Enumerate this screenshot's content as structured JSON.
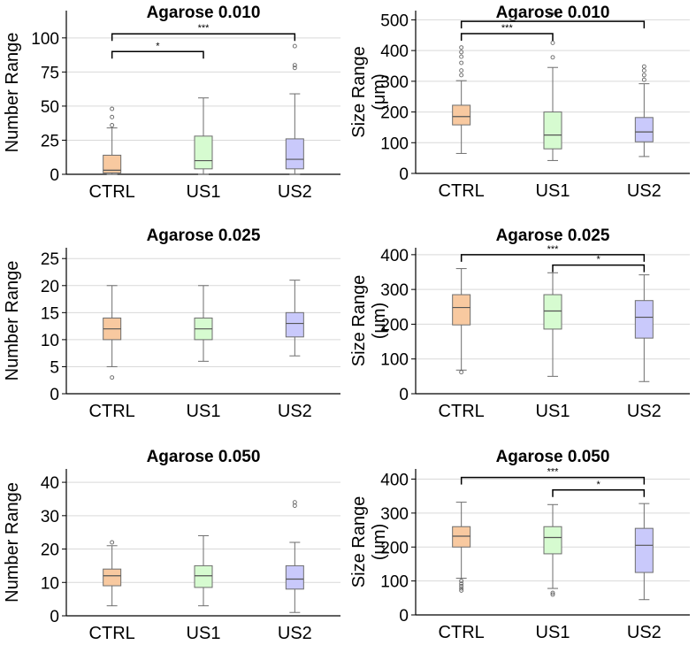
{
  "figure": {
    "colors": {
      "CTRL": "#f8c9a0",
      "US1": "#d6fbd0",
      "US2": "#c9c9fb",
      "edge": "#6e6e6e",
      "grid": "#d9d9d9",
      "bracket": "#000000"
    }
  },
  "chart_data": [
    {
      "type": "box",
      "title": "Agarose 0.010",
      "ylabel": "Number Range",
      "ylim": [
        0,
        120
      ],
      "yticks": [
        0,
        25,
        50,
        75,
        100
      ],
      "categories": [
        "CTRL",
        "US1",
        "US2"
      ],
      "boxes": [
        {
          "name": "CTRL",
          "whislo": 0,
          "q1": 1,
          "med": 3,
          "q3": 14,
          "whishi": 34,
          "fliers": [
            36,
            42,
            48
          ]
        },
        {
          "name": "US1",
          "whislo": 0,
          "q1": 4,
          "med": 10,
          "q3": 28,
          "whishi": 56,
          "fliers": []
        },
        {
          "name": "US2",
          "whislo": 0,
          "q1": 4,
          "med": 11,
          "q3": 26,
          "whishi": 59,
          "fliers": [
            78,
            80,
            94
          ]
        }
      ],
      "significance": [
        {
          "from": "CTRL",
          "to": "US1",
          "label": "*",
          "y": 90
        },
        {
          "from": "CTRL",
          "to": "US2",
          "label": "***",
          "y": 103
        }
      ]
    },
    {
      "type": "box",
      "title": "Agarose 0.010",
      "ylabel": "Size Range",
      "ylabel_unit": "(μm)",
      "ylim": [
        0,
        530
      ],
      "yticks": [
        0,
        100,
        200,
        300,
        400,
        500
      ],
      "categories": [
        "CTRL",
        "US1",
        "US2"
      ],
      "boxes": [
        {
          "name": "CTRL",
          "whislo": 65,
          "q1": 158,
          "med": 185,
          "q3": 222,
          "whishi": 302,
          "fliers": [
            320,
            335,
            360,
            380,
            395,
            410
          ]
        },
        {
          "name": "US1",
          "whislo": 42,
          "q1": 80,
          "med": 125,
          "q3": 200,
          "whishi": 345,
          "fliers": [
            378,
            425
          ]
        },
        {
          "name": "US2",
          "whislo": 55,
          "q1": 103,
          "med": 135,
          "q3": 182,
          "whishi": 292,
          "fliers": [
            305,
            320,
            335,
            348
          ]
        }
      ],
      "significance": [
        {
          "from": "CTRL",
          "to": "US1",
          "label": "***",
          "y": 455
        },
        {
          "from": "CTRL",
          "to": "US2",
          "label": "***",
          "y": 495
        }
      ]
    },
    {
      "type": "box",
      "title": "Agarose 0.025",
      "ylabel": "Number Range",
      "ylim": [
        0,
        27
      ],
      "yticks": [
        0,
        5,
        10,
        15,
        20,
        25
      ],
      "categories": [
        "CTRL",
        "US1",
        "US2"
      ],
      "boxes": [
        {
          "name": "CTRL",
          "whislo": 5,
          "q1": 10,
          "med": 12,
          "q3": 14,
          "whishi": 20,
          "fliers": [
            3
          ]
        },
        {
          "name": "US1",
          "whislo": 6,
          "q1": 10,
          "med": 12,
          "q3": 14,
          "whishi": 20,
          "fliers": []
        },
        {
          "name": "US2",
          "whislo": 7,
          "q1": 10.5,
          "med": 13,
          "q3": 15,
          "whishi": 21,
          "fliers": []
        }
      ],
      "significance": []
    },
    {
      "type": "box",
      "title": "Agarose 0.025",
      "ylabel": "Size Range",
      "ylabel_unit": "(μm)",
      "ylim": [
        0,
        420
      ],
      "yticks": [
        0,
        100,
        200,
        300,
        400
      ],
      "categories": [
        "CTRL",
        "US1",
        "US2"
      ],
      "boxes": [
        {
          "name": "CTRL",
          "whislo": 68,
          "q1": 198,
          "med": 248,
          "q3": 285,
          "whishi": 360,
          "fliers": [
            62
          ]
        },
        {
          "name": "US1",
          "whislo": 50,
          "q1": 186,
          "med": 238,
          "q3": 285,
          "whishi": 348,
          "fliers": []
        },
        {
          "name": "US2",
          "whislo": 35,
          "q1": 160,
          "med": 220,
          "q3": 268,
          "whishi": 342,
          "fliers": []
        }
      ],
      "significance": [
        {
          "from": "CTRL",
          "to": "US2",
          "label": "***",
          "y": 400
        },
        {
          "from": "US1",
          "to": "US2",
          "label": "*",
          "y": 370
        }
      ]
    },
    {
      "type": "box",
      "title": "Agarose 0.050",
      "ylabel": "Number Range",
      "ylim": [
        0,
        44
      ],
      "yticks": [
        0,
        10,
        20,
        30,
        40
      ],
      "categories": [
        "CTRL",
        "US1",
        "US2"
      ],
      "boxes": [
        {
          "name": "CTRL",
          "whislo": 3,
          "q1": 9,
          "med": 12,
          "q3": 14,
          "whishi": 21,
          "fliers": [
            22
          ]
        },
        {
          "name": "US1",
          "whislo": 3,
          "q1": 8.5,
          "med": 12,
          "q3": 15,
          "whishi": 24,
          "fliers": []
        },
        {
          "name": "US2",
          "whislo": 1,
          "q1": 8,
          "med": 11,
          "q3": 15,
          "whishi": 22,
          "fliers": [
            33,
            34
          ]
        }
      ],
      "significance": []
    },
    {
      "type": "box",
      "title": "Agarose 0.050",
      "ylabel": "Size Range",
      "ylabel_unit": "(μm)",
      "ylim": [
        0,
        430
      ],
      "yticks": [
        0,
        100,
        200,
        300,
        400
      ],
      "categories": [
        "CTRL",
        "US1",
        "US2"
      ],
      "boxes": [
        {
          "name": "CTRL",
          "whislo": 108,
          "q1": 200,
          "med": 232,
          "q3": 260,
          "whishi": 332,
          "fliers": [
            72,
            78,
            85,
            92,
            100
          ]
        },
        {
          "name": "US1",
          "whislo": 78,
          "q1": 180,
          "med": 228,
          "q3": 260,
          "whishi": 325,
          "fliers": [
            60,
            65
          ]
        },
        {
          "name": "US2",
          "whislo": 45,
          "q1": 125,
          "med": 205,
          "q3": 255,
          "whishi": 328,
          "fliers": []
        }
      ],
      "significance": [
        {
          "from": "CTRL",
          "to": "US2",
          "label": "***",
          "y": 405
        },
        {
          "from": "US1",
          "to": "US2",
          "label": "*",
          "y": 368
        }
      ]
    }
  ]
}
